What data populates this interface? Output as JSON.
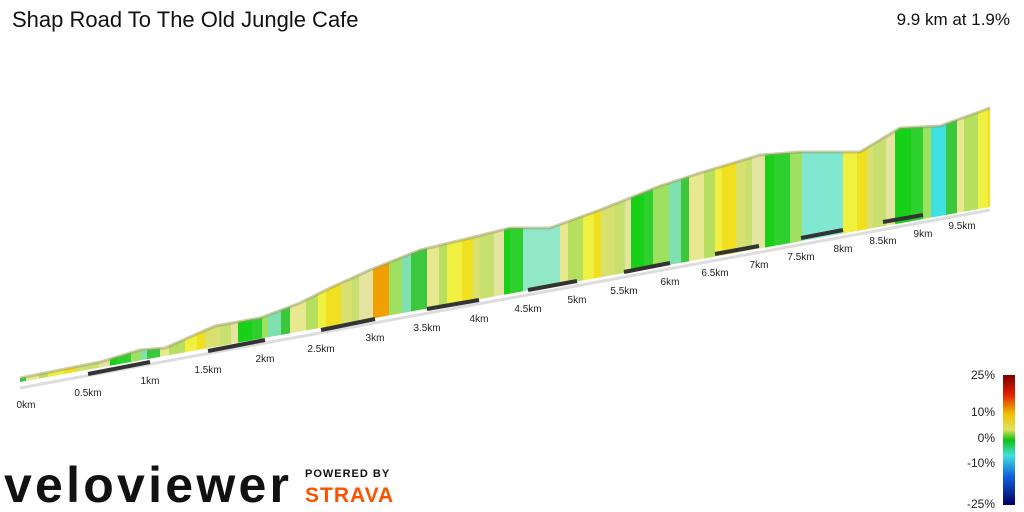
{
  "header": {
    "title": "Shap Road To The Old Jungle Cafe",
    "summary": "9.9 km at 1.9%"
  },
  "distance_labels": [
    "0km",
    "0.5km",
    "1km",
    "1.5km",
    "2km",
    "2.5km",
    "3km",
    "3.5km",
    "4km",
    "4.5km",
    "5km",
    "5.5km",
    "6km",
    "6.5km",
    "7km",
    "7.5km",
    "8km",
    "8.5km",
    "9km",
    "9.5km"
  ],
  "gradient_legend": [
    "25%",
    "10%",
    "0%",
    "-10%",
    "-25%"
  ],
  "branding": {
    "logo": "veloviewer",
    "powered_by": "POWERED BY",
    "partner": "STRAVA"
  }
}
